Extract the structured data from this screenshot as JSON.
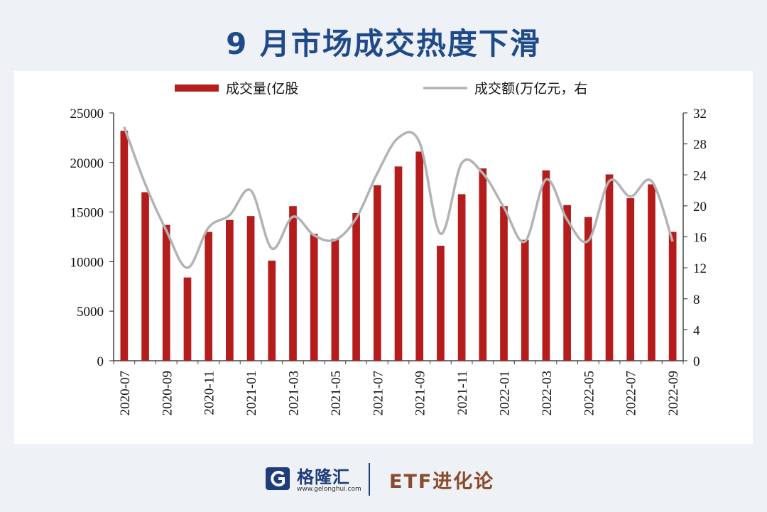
{
  "title": "9 月市场成交热度下滑",
  "chart_data": {
    "type": "bar+line",
    "categories": [
      "2020-07",
      "2020-08",
      "2020-09",
      "2020-10",
      "2020-11",
      "2020-12",
      "2021-01",
      "2021-02",
      "2021-03",
      "2021-04",
      "2021-05",
      "2021-06",
      "2021-07",
      "2021-08",
      "2021-09",
      "2021-10",
      "2021-11",
      "2021-12",
      "2022-01",
      "2022-02",
      "2022-03",
      "2022-04",
      "2022-05",
      "2022-06",
      "2022-07",
      "2022-08",
      "2022-09"
    ],
    "x_tick_labels": [
      "2020-07",
      "2020-09",
      "2020-11",
      "2021-01",
      "2021-03",
      "2021-05",
      "2021-07",
      "2021-09",
      "2021-11",
      "2022-01",
      "2022-03",
      "2022-05",
      "2022-07",
      "2022-09"
    ],
    "series": [
      {
        "name": "成交量(亿股",
        "type": "bar",
        "axis": "left",
        "color": "#b51c1c",
        "values": [
          23200,
          17000,
          13700,
          8400,
          13000,
          14200,
          14600,
          10100,
          15600,
          12800,
          12300,
          14900,
          17700,
          19600,
          21100,
          11600,
          16800,
          19400,
          15600,
          12200,
          19200,
          15700,
          14500,
          18800,
          16400,
          17800,
          13000
        ]
      },
      {
        "name": "成交额(万亿元，右",
        "type": "line",
        "axis": "right",
        "color": "#b3b3b3",
        "values": [
          30.2,
          22.8,
          16.8,
          12.0,
          17.2,
          18.8,
          22.0,
          14.5,
          18.6,
          16.2,
          15.6,
          18.4,
          24.2,
          28.8,
          28.2,
          16.4,
          25.5,
          24.2,
          19.8,
          15.4,
          23.4,
          18.2,
          15.5,
          23.2,
          21.2,
          23.2,
          15.4
        ]
      }
    ],
    "y_left": {
      "min": 0,
      "max": 25000,
      "ticks": [
        0,
        5000,
        10000,
        15000,
        20000,
        25000
      ]
    },
    "y_right": {
      "min": 0,
      "max": 32,
      "ticks": [
        0,
        4,
        8,
        12,
        16,
        20,
        24,
        28,
        32
      ]
    },
    "legend": "top"
  },
  "footer": {
    "brand_name": "格隆汇",
    "brand_url": "www.gelonghui.com",
    "etf_label": "ETF进化论",
    "logo_letter": "G"
  }
}
